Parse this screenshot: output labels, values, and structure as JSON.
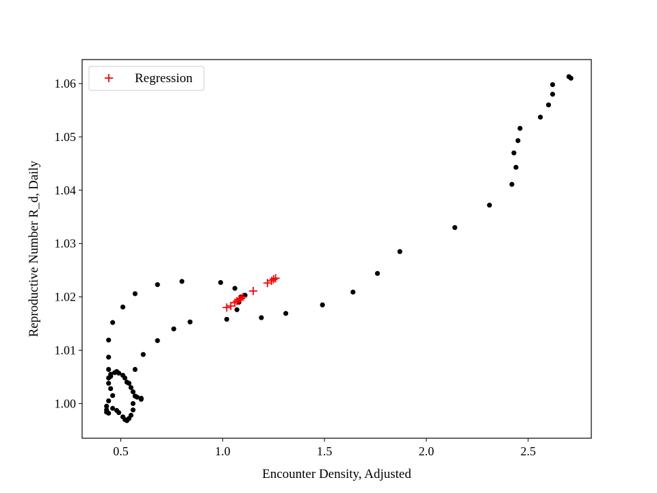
{
  "chart_data": {
    "type": "scatter",
    "title": "",
    "xlabel": "Encounter Density, Adjusted",
    "ylabel": "Reproductive Number R_d, Daily",
    "xlim": [
      0.31,
      2.81
    ],
    "ylim": [
      0.9935,
      1.0645
    ],
    "xticks": [
      0.5,
      1.0,
      1.5,
      2.0,
      2.5
    ],
    "xtick_labels": [
      "0.5",
      "1.0",
      "1.5",
      "2.0",
      "2.5"
    ],
    "yticks": [
      1.0,
      1.01,
      1.02,
      1.03,
      1.04,
      1.05,
      1.06
    ],
    "ytick_labels": [
      "1.00",
      "1.01",
      "1.02",
      "1.03",
      "1.04",
      "1.05",
      "1.06"
    ],
    "grid": false,
    "legend_position": "upper-left",
    "series": [
      {
        "name": "",
        "marker": "circle",
        "color": "#000000",
        "x": [
          2.7,
          2.71,
          2.62,
          2.62,
          2.6,
          2.56,
          2.46,
          2.45,
          2.43,
          2.44,
          2.42,
          2.31,
          2.14,
          1.87,
          1.76,
          1.64,
          1.49,
          1.31,
          1.19,
          1.11,
          1.09,
          1.08,
          1.07,
          1.06,
          1.02,
          0.99,
          0.84,
          0.8,
          0.76,
          0.68,
          0.68,
          0.61,
          0.57,
          0.57,
          0.51,
          0.46,
          0.44,
          0.44,
          0.44,
          0.44,
          0.44,
          0.45,
          0.45,
          0.45,
          0.46,
          0.47,
          0.48,
          0.49,
          0.51,
          0.52,
          0.53,
          0.54,
          0.55,
          0.56,
          0.57,
          0.58,
          0.6,
          0.6,
          0.56,
          0.56,
          0.55,
          0.54,
          0.53,
          0.52,
          0.51,
          0.49,
          0.48,
          0.46,
          0.44,
          0.43,
          0.43,
          0.43,
          0.44
        ],
        "y": [
          1.0613,
          1.061,
          1.0598,
          1.058,
          1.056,
          1.0537,
          1.0516,
          1.0493,
          1.047,
          1.0443,
          1.0411,
          1.0372,
          1.033,
          1.0285,
          1.0244,
          1.0209,
          1.0185,
          1.0169,
          1.0161,
          1.0203,
          1.02,
          1.019,
          1.0176,
          1.0216,
          1.0158,
          1.0227,
          1.0153,
          1.0229,
          1.014,
          1.0223,
          1.0118,
          1.0092,
          1.0206,
          1.0064,
          1.0181,
          1.0152,
          1.0119,
          1.0087,
          1.0064,
          1.0048,
          1.0038,
          1.0028,
          1.0051,
          1.0055,
          1.0015,
          1.0058,
          1.006,
          1.0057,
          1.0053,
          1.0048,
          1.004,
          1.0038,
          1.003,
          1.0022,
          1.0014,
          1.0012,
          1.001,
          1.0008,
          1.0,
          0.9988,
          0.9978,
          0.9972,
          0.9968,
          0.997,
          0.9975,
          0.9983,
          0.9987,
          0.9991,
          0.9982,
          0.9984,
          0.9988,
          0.9995,
          1.0005
        ]
      },
      {
        "name": "Regression",
        "marker": "plus",
        "color": "#ff0000",
        "x": [
          1.02,
          1.04,
          1.06,
          1.07,
          1.08,
          1.09,
          1.1,
          1.15,
          1.22,
          1.24,
          1.25,
          1.26
        ],
        "y": [
          1.018,
          1.0183,
          1.0189,
          1.0192,
          1.0195,
          1.0197,
          1.02,
          1.0211,
          1.0226,
          1.023,
          1.0233,
          1.0235
        ]
      }
    ]
  }
}
